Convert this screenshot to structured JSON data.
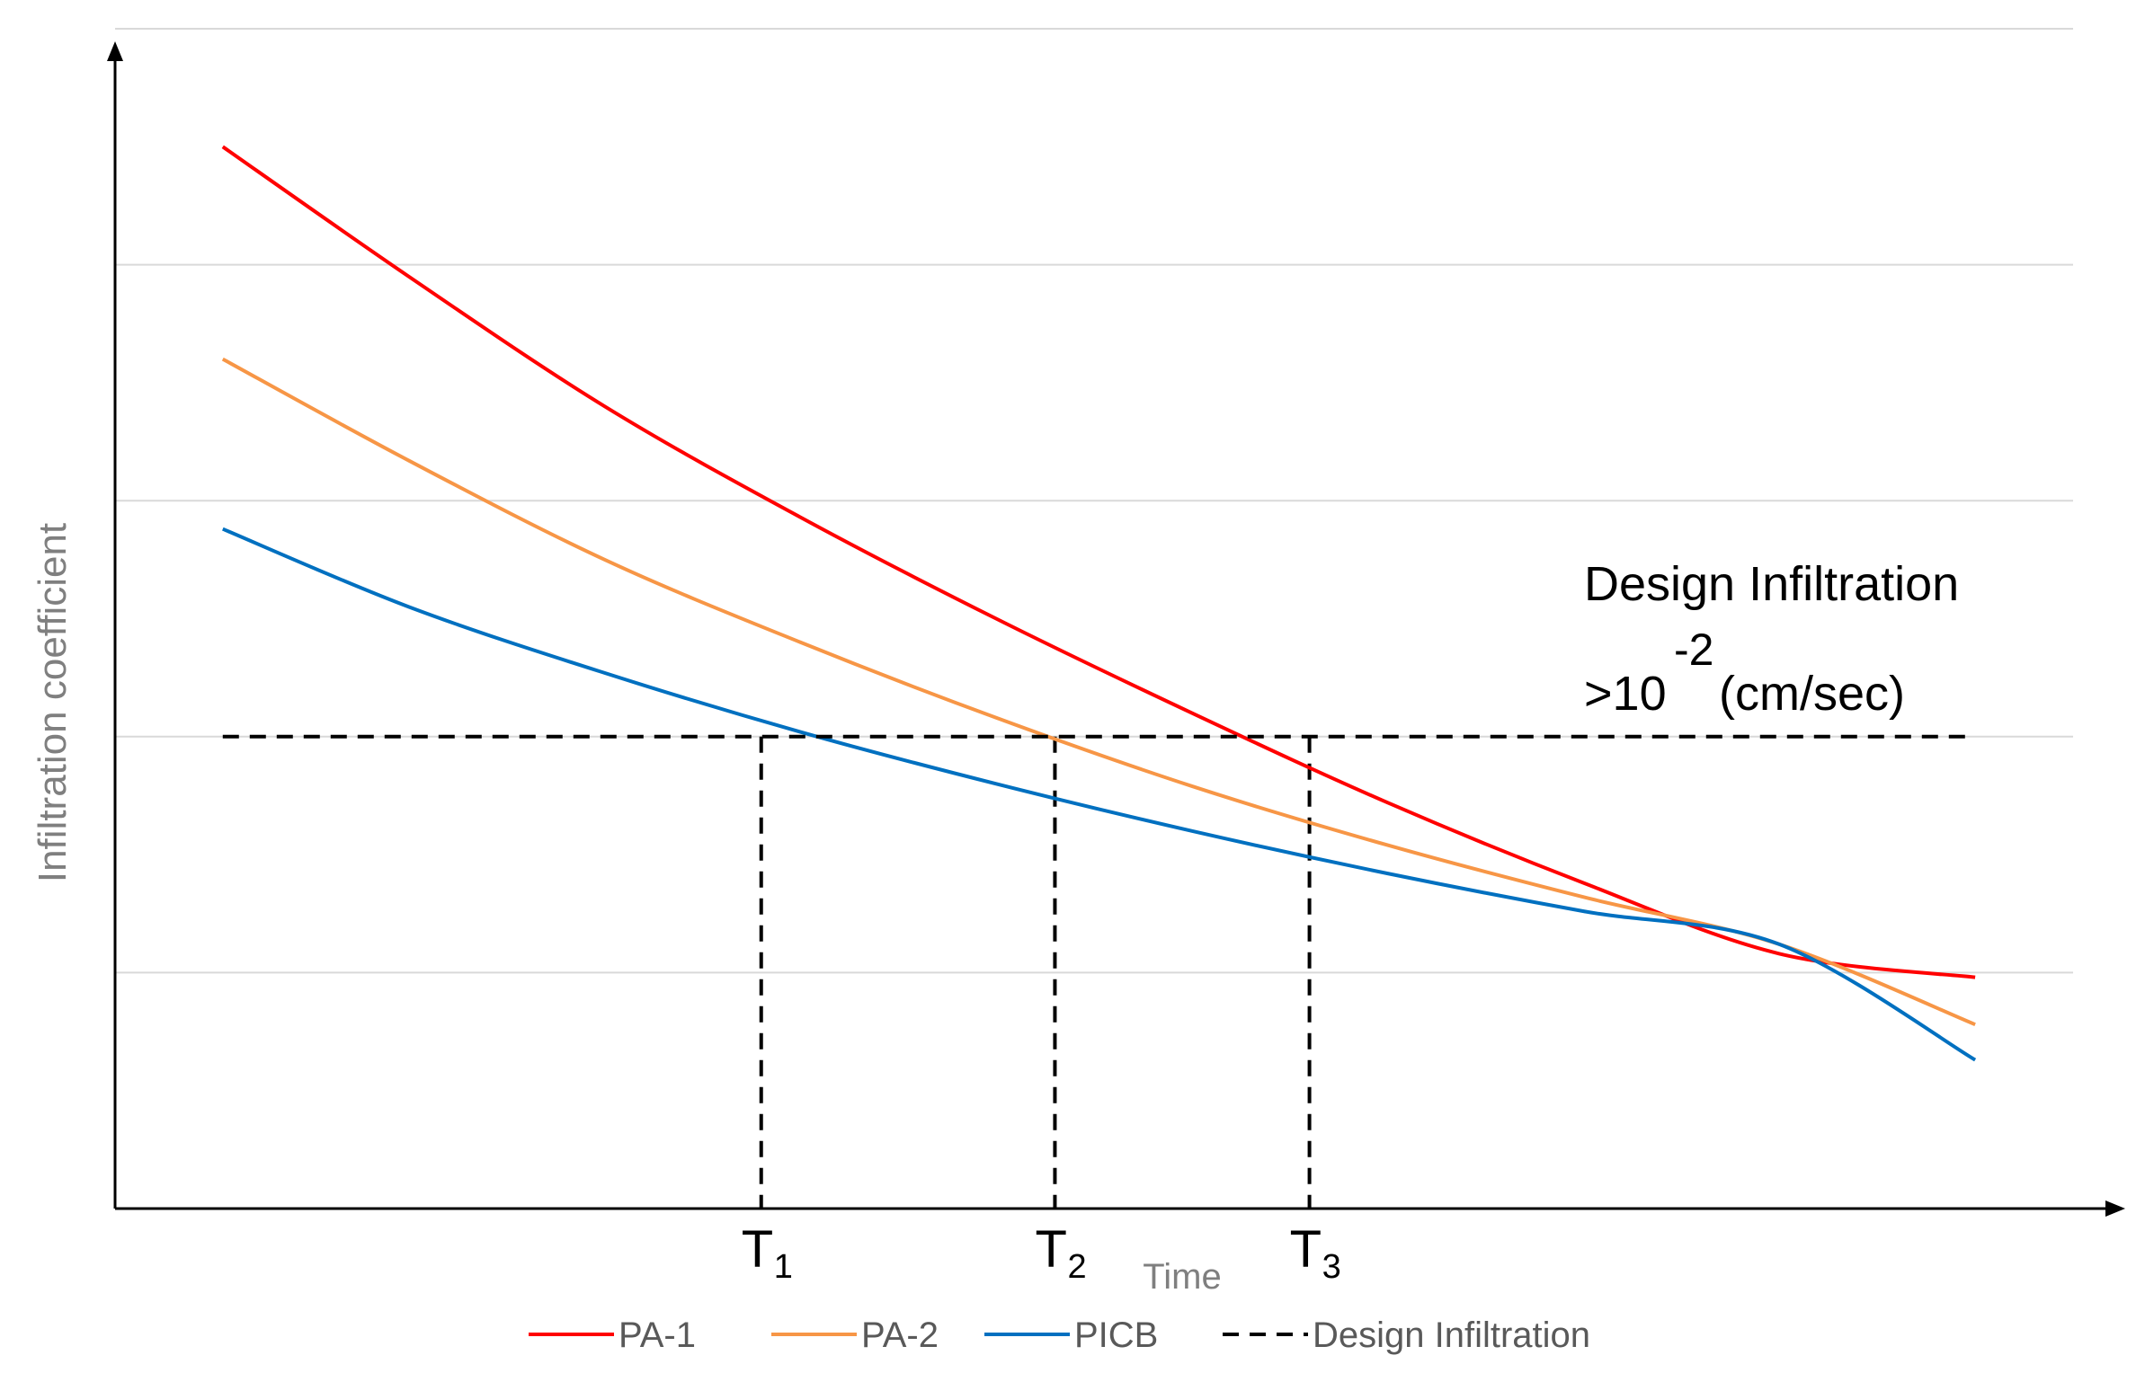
{
  "chart_data": {
    "type": "line",
    "title": "",
    "xlabel": "Time",
    "ylabel": "Infiltration coefficient",
    "xlim": [
      0,
      10
    ],
    "ylim": [
      0,
      5
    ],
    "grid": true,
    "legend_position": "bottom",
    "x": [
      0.55,
      1.5,
      2.5,
      3.5,
      4.5,
      5.5,
      6.5,
      7.5,
      8.5,
      9.5
    ],
    "series": [
      {
        "name": "PA-1",
        "color": "#ff0000",
        "style": "solid",
        "values": [
          4.5,
          3.95,
          3.4,
          2.93,
          2.5,
          2.1,
          1.72,
          1.38,
          1.08,
          0.98
        ]
      },
      {
        "name": "PA-2",
        "color": "#f79646",
        "style": "solid",
        "values": [
          3.6,
          3.17,
          2.75,
          2.4,
          2.08,
          1.79,
          1.54,
          1.32,
          1.12,
          0.78
        ]
      },
      {
        "name": "PICB",
        "color": "#0070c0",
        "style": "solid",
        "values": [
          2.88,
          2.55,
          2.27,
          2.02,
          1.8,
          1.6,
          1.42,
          1.26,
          1.12,
          0.63
        ]
      },
      {
        "name": "Design Infiltration",
        "color": "#000000",
        "style": "dashed",
        "values": [
          2.0,
          2.0,
          2.0,
          2.0,
          2.0,
          2.0,
          2.0,
          2.0,
          2.0,
          2.0
        ]
      }
    ],
    "crossings": [
      {
        "label": "T",
        "sub": "1",
        "x": 3.3
      },
      {
        "label": "T",
        "sub": "2",
        "x": 4.8
      },
      {
        "label": "T",
        "sub": "3",
        "x": 6.1
      }
    ],
    "annotation": {
      "line1": "Design  Infiltration",
      "prefix": ">10",
      "exponent": "-2",
      "suffix": " (cm/sec)"
    }
  }
}
